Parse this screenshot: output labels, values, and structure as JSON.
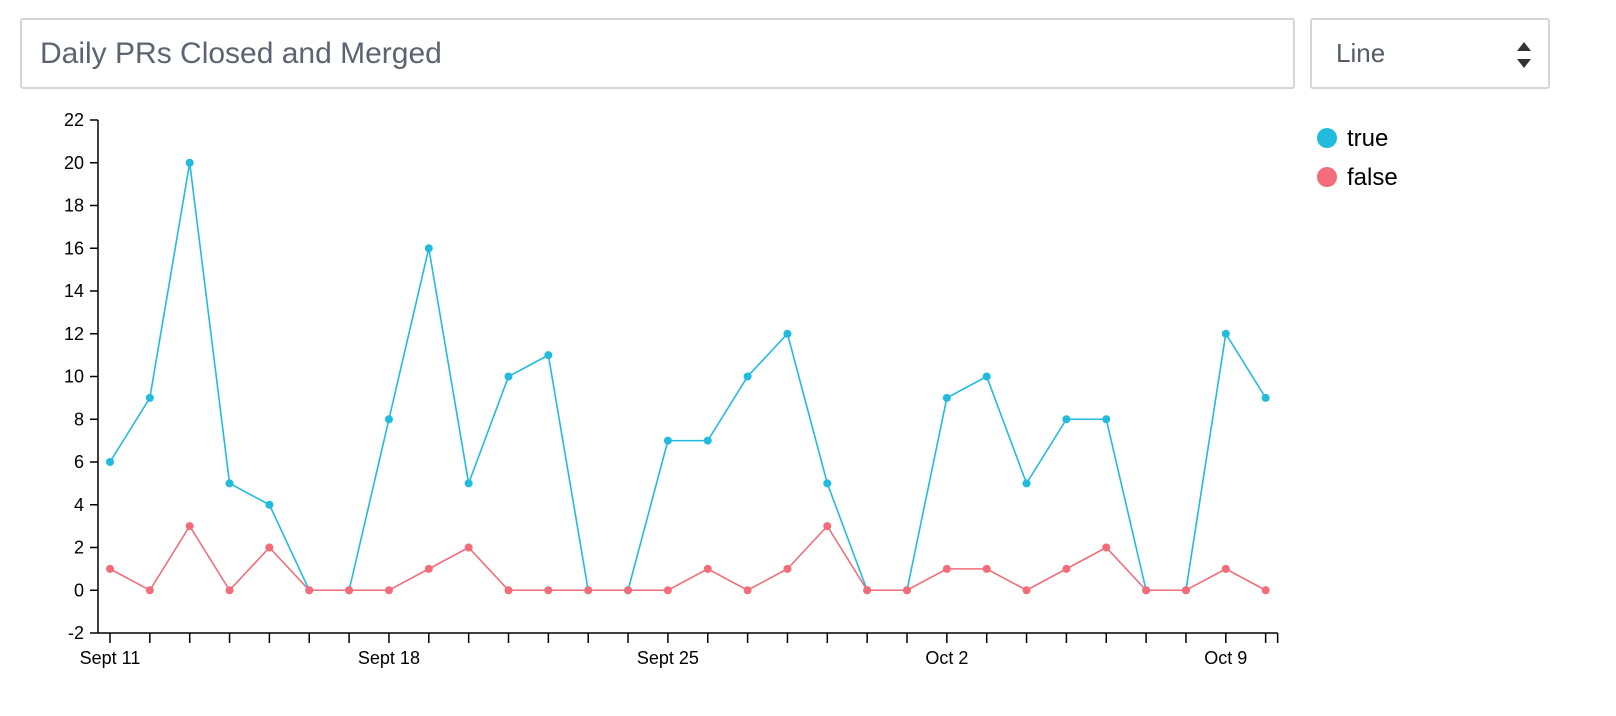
{
  "controls": {
    "title_value": "Daily PRs Closed and Merged",
    "chart_type": "Line"
  },
  "chart_data": {
    "type": "line",
    "title": "Daily PRs Closed and Merged",
    "x_labels": [
      "Sept 11",
      "Sept 18",
      "Sept 25",
      "Oct 2",
      "Oct 9"
    ],
    "x_label_positions": [
      0,
      7,
      14,
      21,
      28
    ],
    "x_count": 30,
    "y_ticks": [
      -2,
      0,
      2,
      4,
      6,
      8,
      10,
      12,
      14,
      16,
      18,
      20,
      22
    ],
    "ylim": [
      -2,
      22
    ],
    "grid": false,
    "legend_position": "top-right",
    "series": [
      {
        "name": "true",
        "color": "#22bbdd",
        "values": [
          6,
          9,
          20,
          5,
          4,
          0,
          0,
          8,
          16,
          5,
          10,
          11,
          0,
          0,
          7,
          7,
          10,
          12,
          5,
          0,
          0,
          9,
          10,
          5,
          8,
          8,
          0,
          0,
          12,
          9
        ]
      },
      {
        "name": "false",
        "color": "#f26c7a",
        "values": [
          1,
          0,
          3,
          0,
          2,
          0,
          0,
          0,
          1,
          2,
          0,
          0,
          0,
          0,
          0,
          1,
          0,
          1,
          3,
          0,
          0,
          1,
          1,
          0,
          1,
          2,
          0,
          0,
          1,
          0
        ]
      }
    ]
  }
}
